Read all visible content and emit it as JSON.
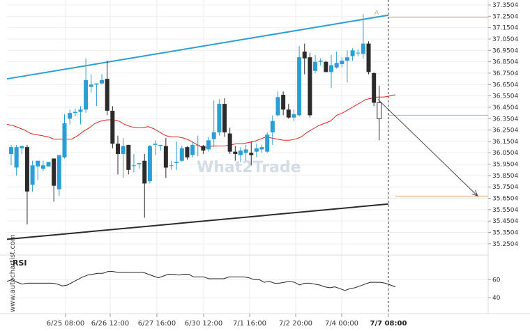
{
  "chart_data": {
    "type": "candlestick",
    "y_axis": {
      "ticks": [
        "37.3504",
        "37.2504",
        "37.1504",
        "37.0504",
        "36.9504",
        "36.8504",
        "36.7504",
        "36.6504",
        "36.5504",
        "36.4504",
        "36.3504",
        "36.2504",
        "36.1504",
        "36.0504",
        "35.9504",
        "35.8504",
        "35.7504",
        "35.6504",
        "35.5504",
        "35.4504",
        "35.3504",
        "35.2504"
      ],
      "range": [
        35.2004,
        37.3504
      ]
    },
    "x_axis": {
      "ticks": [
        "6/25 08:00",
        "6/26 12:00",
        "6/27 16:00",
        "6/30 12:00",
        "7/1 16:00",
        "7/2 20:00",
        "7/4 00:00",
        "7/7 08:00"
      ],
      "highlight_tick": "7/7 08:00"
    },
    "colors": {
      "up": "#2a9fd6",
      "down": "#2b2b2b",
      "sma": "#e0201b",
      "channel_top": "#2a9fd6",
      "channel_bottom": "#2b2b2b",
      "level": "#e8a07a",
      "arrow": "#444444"
    },
    "candles": [
      {
        "o": 36.04,
        "h": 36.12,
        "l": 35.94,
        "c": 36.1
      },
      {
        "o": 35.92,
        "h": 36.12,
        "l": 35.85,
        "c": 36.1
      },
      {
        "o": 36.09,
        "h": 36.1,
        "l": 36.04,
        "c": 36.11
      },
      {
        "o": 36.1,
        "h": 36.12,
        "l": 35.42,
        "c": 35.71
      },
      {
        "o": 35.77,
        "h": 35.98,
        "l": 35.71,
        "c": 35.94
      },
      {
        "o": 35.93,
        "h": 35.98,
        "l": 35.81,
        "c": 35.98
      },
      {
        "o": 35.91,
        "h": 35.98,
        "l": 35.89,
        "c": 35.94
      },
      {
        "o": 35.93,
        "h": 35.97,
        "l": 35.93,
        "c": 35.97
      },
      {
        "o": 36.0,
        "h": 36.0,
        "l": 35.62,
        "c": 35.76
      },
      {
        "o": 35.73,
        "h": 36.03,
        "l": 35.67,
        "c": 36.03
      },
      {
        "o": 36.01,
        "h": 36.39,
        "l": 36.0,
        "c": 36.31
      },
      {
        "o": 36.35,
        "h": 36.43,
        "l": 36.3,
        "c": 36.4
      },
      {
        "o": 36.4,
        "h": 36.44,
        "l": 36.37,
        "c": 36.41
      },
      {
        "o": 36.41,
        "h": 36.46,
        "l": 36.3,
        "c": 36.43
      },
      {
        "o": 36.43,
        "h": 36.88,
        "l": 36.4,
        "c": 36.69
      },
      {
        "o": 36.63,
        "h": 36.74,
        "l": 36.58,
        "c": 36.65
      },
      {
        "o": 36.65,
        "h": 36.66,
        "l": 36.46,
        "c": 36.66
      },
      {
        "o": 36.66,
        "h": 36.74,
        "l": 36.65,
        "c": 36.69
      },
      {
        "o": 36.7,
        "h": 36.86,
        "l": 36.38,
        "c": 36.42
      },
      {
        "o": 36.42,
        "h": 36.46,
        "l": 36.09,
        "c": 36.13
      },
      {
        "o": 36.13,
        "h": 36.2,
        "l": 35.86,
        "c": 36.04
      },
      {
        "o": 36.04,
        "h": 36.18,
        "l": 35.83,
        "c": 36.11
      },
      {
        "o": 36.12,
        "h": 36.12,
        "l": 35.86,
        "c": 35.9
      },
      {
        "o": 35.94,
        "h": 36.04,
        "l": 35.88,
        "c": 35.94
      },
      {
        "o": 35.95,
        "h": 35.96,
        "l": 35.91,
        "c": 35.96
      },
      {
        "o": 35.98,
        "h": 36.04,
        "l": 35.48,
        "c": 35.78
      },
      {
        "o": 35.8,
        "h": 36.12,
        "l": 35.78,
        "c": 36.11
      },
      {
        "o": 36.12,
        "h": 36.16,
        "l": 36.03,
        "c": 36.13
      },
      {
        "o": 36.11,
        "h": 36.12,
        "l": 36.07,
        "c": 36.12
      },
      {
        "o": 36.11,
        "h": 36.18,
        "l": 35.83,
        "c": 35.92
      },
      {
        "o": 35.94,
        "h": 35.98,
        "l": 35.9,
        "c": 35.94
      },
      {
        "o": 35.96,
        "h": 36.15,
        "l": 35.9,
        "c": 35.97
      },
      {
        "o": 35.98,
        "h": 36.11,
        "l": 35.97,
        "c": 36.09
      },
      {
        "o": 36.1,
        "h": 36.11,
        "l": 35.99,
        "c": 36.01
      },
      {
        "o": 36.03,
        "h": 36.15,
        "l": 36.01,
        "c": 36.12
      },
      {
        "o": 36.12,
        "h": 36.2,
        "l": 36.02,
        "c": 36.12
      },
      {
        "o": 36.11,
        "h": 36.12,
        "l": 36.04,
        "c": 36.07
      },
      {
        "o": 36.08,
        "h": 36.19,
        "l": 36.06,
        "c": 36.16
      },
      {
        "o": 36.17,
        "h": 36.51,
        "l": 36.1,
        "c": 36.23
      },
      {
        "o": 36.23,
        "h": 36.52,
        "l": 36.2,
        "c": 36.48
      },
      {
        "o": 36.48,
        "h": 36.53,
        "l": 36.19,
        "c": 36.23
      },
      {
        "o": 36.22,
        "h": 36.27,
        "l": 36.04,
        "c": 36.06
      },
      {
        "o": 36.06,
        "h": 36.11,
        "l": 35.98,
        "c": 36.04
      },
      {
        "o": 36.03,
        "h": 36.1,
        "l": 35.97,
        "c": 36.07
      },
      {
        "o": 36.05,
        "h": 36.12,
        "l": 35.98,
        "c": 36.08
      },
      {
        "o": 36.05,
        "h": 36.15,
        "l": 35.94,
        "c": 36.03
      },
      {
        "o": 36.06,
        "h": 36.13,
        "l": 36.01,
        "c": 36.09
      },
      {
        "o": 36.08,
        "h": 36.12,
        "l": 36.05,
        "c": 36.1
      },
      {
        "o": 36.06,
        "h": 36.23,
        "l": 36.05,
        "c": 36.21
      },
      {
        "o": 36.23,
        "h": 36.38,
        "l": 36.12,
        "c": 36.33
      },
      {
        "o": 36.38,
        "h": 36.59,
        "l": 36.37,
        "c": 36.54
      },
      {
        "o": 36.56,
        "h": 36.59,
        "l": 36.38,
        "c": 36.43
      },
      {
        "o": 36.43,
        "h": 36.48,
        "l": 36.35,
        "c": 36.36
      },
      {
        "o": 36.36,
        "h": 36.43,
        "l": 36.33,
        "c": 36.39
      },
      {
        "o": 36.38,
        "h": 36.99,
        "l": 36.37,
        "c": 36.89
      },
      {
        "o": 36.94,
        "h": 37.01,
        "l": 36.74,
        "c": 36.88
      },
      {
        "o": 36.89,
        "h": 36.93,
        "l": 36.36,
        "c": 36.38
      },
      {
        "o": 36.77,
        "h": 36.91,
        "l": 36.75,
        "c": 36.85
      },
      {
        "o": 36.85,
        "h": 36.88,
        "l": 36.82,
        "c": 36.86
      },
      {
        "o": 36.85,
        "h": 36.86,
        "l": 36.76,
        "c": 36.76
      },
      {
        "o": 36.76,
        "h": 36.91,
        "l": 36.62,
        "c": 36.82
      },
      {
        "o": 36.8,
        "h": 36.94,
        "l": 36.79,
        "c": 36.84
      },
      {
        "o": 36.83,
        "h": 36.89,
        "l": 36.8,
        "c": 36.86
      },
      {
        "o": 36.86,
        "h": 36.95,
        "l": 36.67,
        "c": 36.89
      },
      {
        "o": 36.9,
        "h": 36.97,
        "l": 36.86,
        "c": 36.95
      },
      {
        "o": 36.93,
        "h": 36.96,
        "l": 36.9,
        "c": 36.93
      },
      {
        "o": 36.92,
        "h": 37.27,
        "l": 36.88,
        "c": 37.01
      },
      {
        "o": 37.01,
        "h": 37.03,
        "l": 36.74,
        "c": 36.76
      },
      {
        "o": 36.75,
        "h": 36.76,
        "l": 36.46,
        "c": 36.49
      },
      {
        "o": 36.49,
        "h": 36.64,
        "l": 36.16,
        "c": 36.35
      }
    ],
    "sma": [
      36.3,
      36.29,
      36.27,
      36.25,
      36.22,
      36.21,
      36.2,
      36.19,
      36.17,
      36.17,
      36.17,
      36.17,
      36.2,
      36.24,
      36.27,
      36.31,
      36.33,
      36.34,
      36.34,
      36.33,
      36.3,
      36.28,
      36.27,
      36.27,
      36.28,
      36.26,
      36.23,
      36.2,
      36.19,
      36.19,
      36.18,
      36.16,
      36.13,
      36.1,
      36.1,
      36.11,
      36.11,
      36.11,
      36.12,
      36.13,
      36.13,
      36.14,
      36.15,
      36.17,
      36.19,
      36.18,
      36.17,
      36.16,
      36.16,
      36.17,
      36.19,
      36.23,
      36.26,
      36.29,
      36.31,
      36.33,
      36.38,
      36.4,
      36.43,
      36.46,
      36.49,
      36.52,
      36.53,
      36.54,
      36.54,
      36.55,
      36.56
    ],
    "rsi": {
      "label": "RSI",
      "ticks": [
        "60",
        "40"
      ],
      "range": [
        30,
        78
      ],
      "values": [
        58,
        60,
        57,
        55,
        56,
        56,
        56,
        56,
        56,
        56,
        55,
        53,
        54,
        57,
        60,
        63,
        65,
        66,
        67,
        67,
        69,
        69,
        68,
        68,
        68,
        68,
        68,
        68,
        66,
        64,
        62,
        64,
        66,
        66,
        65,
        66,
        66,
        63,
        63,
        63,
        61,
        61,
        61,
        61,
        63,
        63,
        63,
        63,
        62,
        60,
        60,
        57,
        58,
        56,
        56,
        57,
        58,
        57,
        54,
        56,
        56,
        55,
        54,
        52,
        51,
        52,
        50,
        48,
        50,
        51,
        53,
        55,
        57,
        57,
        57,
        56,
        54,
        52
      ]
    },
    "channel": {
      "top": {
        "from": 36.7,
        "to": 37.26
      },
      "bottom": {
        "from": 35.29,
        "to": 35.6
      }
    },
    "levels": [
      37.24,
      36.38,
      35.67
    ],
    "marker": "A",
    "watermark": "What2Trade",
    "side_text": "www.autochartist.com"
  }
}
